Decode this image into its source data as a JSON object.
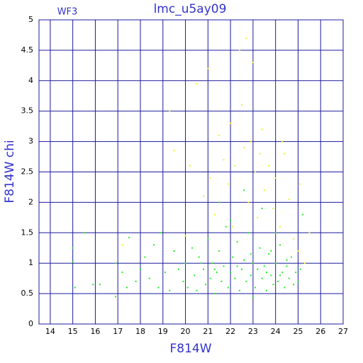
{
  "chart_data": {
    "type": "scatter",
    "title": "lmc_u5ay09",
    "subtitle": "WF3",
    "x_label": "F814W",
    "y_label": "F814W chi",
    "xlim": [
      13.5,
      27
    ],
    "ylim": [
      0,
      5
    ],
    "xticks": [
      14,
      15,
      16,
      17,
      18,
      19,
      20,
      21,
      22,
      23,
      24,
      25,
      26,
      27
    ],
    "yticks": [
      0,
      0.5,
      1,
      1.5,
      2,
      2.5,
      3,
      3.5,
      4,
      4.5,
      5
    ],
    "grid": true,
    "grid_color": "#1c1c9c",
    "series": [
      {
        "color": "#22ee22",
        "x": [
          15.0,
          15.0,
          15.1,
          15.5,
          15.9,
          16.2,
          16.9,
          16.9,
          17.2,
          17.5,
          17.4,
          17.8,
          18.0,
          18.2,
          18.4,
          18.6,
          18.8,
          18.9,
          19.1,
          19.3,
          19.5,
          19.7,
          19.9,
          20.0,
          20.1,
          20.3,
          20.4,
          20.5,
          20.6,
          20.8,
          20.9,
          21.0,
          21.1,
          21.2,
          21.3,
          21.4,
          21.5,
          21.6,
          21.7,
          21.8,
          21.9,
          22.0,
          22.1,
          22.2,
          22.3,
          22.4,
          22.5,
          22.6,
          22.7,
          22.8,
          22.9,
          23.0,
          23.1,
          23.2,
          23.3,
          23.4,
          23.5,
          23.6,
          23.7,
          23.8,
          23.9,
          24.0,
          24.1,
          24.2,
          24.3,
          24.4,
          24.5,
          24.6,
          24.7,
          24.8,
          24.9,
          25.0,
          25.1,
          25.2,
          21.5,
          22.6,
          23.4,
          22.0,
          24.0,
          23.0,
          22.3,
          23.6,
          24.2,
          21.3,
          20.7,
          22.9,
          23.8,
          24.5
        ],
        "y": [
          1.25,
          1.02,
          0.6,
          1.5,
          0.65,
          0.65,
          1.0,
          0.45,
          0.85,
          1.42,
          0.6,
          0.7,
          0.9,
          1.1,
          0.75,
          1.3,
          0.6,
          1.5,
          0.85,
          0.55,
          1.2,
          0.9,
          0.7,
          1.0,
          0.6,
          1.25,
          0.8,
          0.55,
          1.1,
          0.9,
          0.65,
          1.4,
          0.75,
          1.0,
          0.5,
          0.85,
          1.2,
          0.7,
          0.95,
          1.6,
          0.6,
          0.85,
          1.1,
          0.75,
          1.35,
          0.55,
          0.9,
          1.05,
          0.7,
          1.5,
          0.8,
          1.0,
          0.6,
          0.9,
          1.25,
          0.75,
          0.95,
          0.55,
          1.15,
          0.8,
          0.65,
          1.0,
          0.7,
          1.3,
          0.85,
          0.6,
          0.95,
          0.75,
          1.1,
          0.65,
          0.85,
          0.7,
          0.9,
          1.8,
          2.0,
          2.2,
          1.9,
          1.7,
          1.5,
          0.45,
          0.95,
          0.85,
          0.8,
          0.9,
          1.0,
          1.15,
          1.2,
          1.05
        ]
      },
      {
        "color": "#f0f020",
        "x": [
          19.3,
          19.5,
          20.2,
          20.5,
          20.8,
          21.0,
          21.1,
          21.3,
          21.5,
          21.7,
          21.9,
          22.0,
          22.1,
          22.2,
          22.4,
          22.5,
          22.6,
          22.7,
          22.8,
          22.9,
          23.0,
          23.1,
          23.2,
          23.3,
          23.4,
          23.5,
          23.7,
          23.9,
          24.0,
          24.2,
          24.4,
          24.6,
          24.8,
          25.0,
          25.3,
          25.5,
          20.0,
          17.2,
          25.1,
          24.3
        ],
        "y": [
          3.5,
          2.85,
          2.6,
          3.95,
          2.1,
          4.2,
          2.4,
          1.8,
          3.1,
          2.7,
          2.3,
          3.3,
          1.6,
          2.6,
          4.5,
          3.6,
          2.9,
          4.7,
          2.0,
          3.0,
          4.3,
          2.5,
          1.75,
          2.8,
          3.2,
          2.2,
          2.6,
          1.9,
          2.4,
          1.6,
          2.8,
          2.05,
          1.4,
          1.2,
          1.0,
          1.5,
          1.45,
          1.3,
          2.3,
          3.0
        ]
      }
    ]
  }
}
